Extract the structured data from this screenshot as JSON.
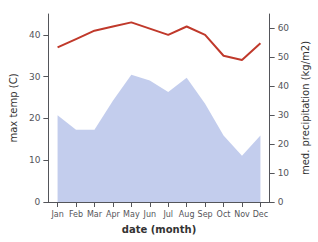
{
  "chart_data": {
    "type": "line",
    "categories": [
      "Jan",
      "Feb",
      "Mar",
      "Apr",
      "May",
      "Jun",
      "Jul",
      "Aug",
      "Sep",
      "Oct",
      "Nov",
      "Dec"
    ],
    "series": [
      {
        "type": "area",
        "color": "#b8c4ea",
        "axis": "y2",
        "values": [
          30,
          25,
          25,
          35,
          44,
          42,
          38,
          43,
          34,
          23,
          16,
          23
        ]
      },
      {
        "type": "line",
        "color": "#c0392b",
        "values": [
          37,
          39,
          41,
          42,
          43,
          41.5,
          40,
          42,
          40,
          35,
          34,
          38
        ]
      }
    ],
    "xlabel": "date (month)",
    "ylabel": "max temp (C)",
    "y2label": "med. precipitation (kg/m2)",
    "ylim": [
      0,
      45
    ],
    "yticks": [
      0,
      10,
      20,
      30,
      40
    ],
    "y2lim": [
      0,
      65
    ],
    "y2ticks": [
      0,
      10,
      20,
      30,
      40,
      50,
      60
    ],
    "grid": false
  }
}
